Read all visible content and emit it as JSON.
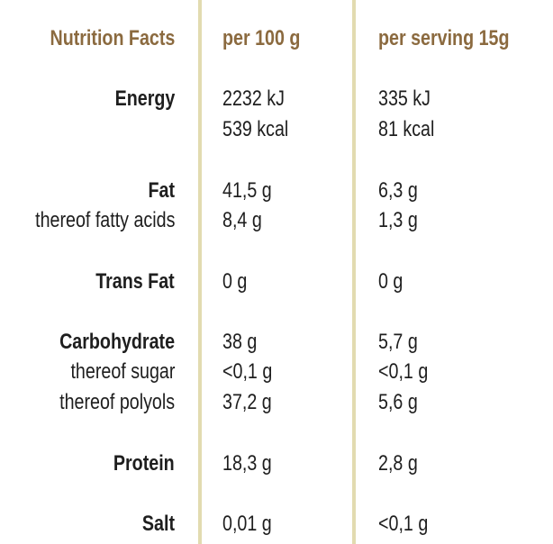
{
  "header": {
    "label": "Nutrition Facts",
    "per100": "per 100 g",
    "perServing": "per serving 15g"
  },
  "colors": {
    "header": "#8b6a3f",
    "divider": "#e2dbb0",
    "text": "#1e1e1e"
  },
  "rows": {
    "energy": {
      "label": "Energy",
      "v100_kj": "2232 kJ",
      "v100_kcal": "539 kcal",
      "vserv_kj": "335 kJ",
      "vserv_kcal": "81 kcal"
    },
    "fat": {
      "label": "Fat",
      "v100": "41,5 g",
      "vserv": "6,3 g"
    },
    "fatty_acids": {
      "label": "thereof fatty acids",
      "v100": "8,4 g",
      "vserv": "1,3 g"
    },
    "trans_fat": {
      "label": "Trans Fat",
      "v100": "0 g",
      "vserv": "0 g"
    },
    "carbohydrate": {
      "label": "Carbohydrate",
      "v100": "38 g",
      "vserv": "5,7 g"
    },
    "sugar": {
      "label": "thereof sugar",
      "v100": "<0,1 g",
      "vserv": "<0,1 g"
    },
    "polyols": {
      "label": "thereof polyols",
      "v100": "37,2 g",
      "vserv": "5,6 g"
    },
    "protein": {
      "label": "Protein",
      "v100": "18,3 g",
      "vserv": "2,8 g"
    },
    "salt": {
      "label": "Salt",
      "v100": "0,01 g",
      "vserv": "<0,1 g"
    }
  }
}
